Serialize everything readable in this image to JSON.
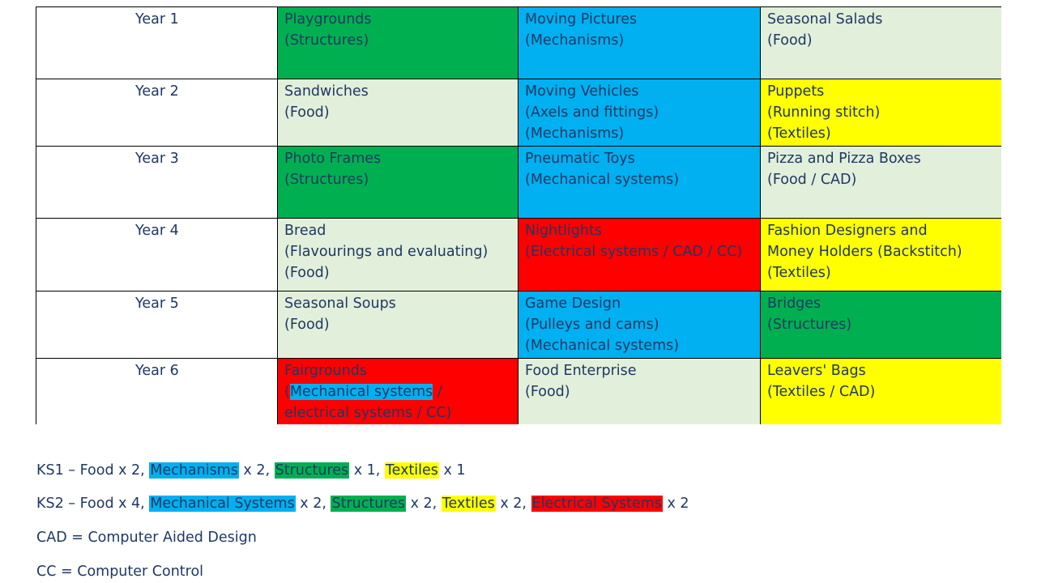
{
  "rows": [
    {
      "year": "Year 1",
      "cells": [
        {
          "lines": [
            "Playgrounds",
            "(Structures)"
          ],
          "color": "#00b050"
        },
        {
          "lines": [
            "Moving Pictures",
            "(Mechanisms)"
          ],
          "color": "#00b0f0"
        },
        {
          "lines": [
            "Seasonal Salads",
            "(Food)"
          ],
          "color": "#e2efda"
        }
      ]
    },
    {
      "year": "Year 2",
      "cells": [
        {
          "lines": [
            "Sandwiches",
            "(Food)"
          ],
          "color": "#e2efda"
        },
        {
          "lines": [
            "Moving Vehicles",
            "(Axels and fittings)",
            "(Mechanisms)"
          ],
          "color": "#00b0f0"
        },
        {
          "lines": [
            "Puppets",
            "(Running stitch)",
            "(Textiles)"
          ],
          "color": "#ffff00"
        }
      ]
    },
    {
      "year": "Year 3",
      "cells": [
        {
          "lines": [
            "Photo Frames",
            "(Structures)"
          ],
          "color": "#00b050"
        },
        {
          "lines": [
            "Pneumatic Toys",
            "(Mechanical systems)"
          ],
          "color": "#00b0f0"
        },
        {
          "lines": [
            "Pizza and Pizza Boxes",
            "(Food / CAD)"
          ],
          "color": "#e2efda"
        }
      ]
    },
    {
      "year": "Year 4",
      "cells": [
        {
          "lines": [
            "Bread",
            "(Flavourings and evaluating)",
            "(Food)"
          ],
          "color": "#e2efda"
        },
        {
          "lines": [
            "Nightlights",
            "(Electrical systems / CAD / CC)"
          ],
          "color": "#ff0000"
        },
        {
          "lines": [
            "Fashion Designers and",
            "Money Holders (Backstitch)",
            "(Textiles)"
          ],
          "color": "#ffff00"
        }
      ]
    },
    {
      "year": "Year 5",
      "cells": [
        {
          "lines": [
            "Seasonal Soups",
            "(Food)"
          ],
          "color": "#e2efda"
        },
        {
          "lines": [
            "Game Design",
            "(Pulleys and cams)",
            "(Mechanical systems)"
          ],
          "color": "#00b0f0"
        },
        {
          "lines": [
            "Bridges",
            "(Structures)"
          ],
          "color": "#00b050"
        }
      ]
    },
    {
      "year": "Year 6",
      "cells": [
        {
          "lines": [
            "Fairgrounds",
            "(",
            "Mechanical systems",
            " /",
            "electrical systems / CC)"
          ],
          "color": "#ff0000"
        },
        {
          "lines": [
            "Food Enterprise",
            "(Food)"
          ],
          "color": "#e2efda"
        },
        {
          "lines": [
            "Leavers' Bags",
            "(Textiles / CAD)"
          ],
          "color": "#ffff00"
        }
      ]
    }
  ],
  "notes": {
    "ks1": {
      "prefix": "KS1 – Food x 2, ",
      "mechanisms": "Mechanisms",
      "after_mechanisms": " x 2, ",
      "structures": "Structures",
      "after_structures": " x 1, ",
      "textiles": "Textiles",
      "after_textiles": " x 1"
    },
    "ks2": {
      "prefix": "KS2 – Food x 4, ",
      "mechanical": "Mechanical Systems",
      "after_mechanical": " x 2, ",
      "structures": "Structures",
      "after_structures": " x 2, ",
      "textiles": "Textiles",
      "after_textiles": " x 2, ",
      "electrical": "Electrical Systems",
      "after_electrical": " x 2"
    },
    "cad": "CAD = Computer Aided Design",
    "cc": "CC = Computer Control"
  },
  "colors": {
    "structures": "#00b050",
    "mechanisms": "#00b0f0",
    "food": "#e2efda",
    "textiles": "#ffff00",
    "electrical": "#ff0000",
    "text": "#1f3864"
  }
}
